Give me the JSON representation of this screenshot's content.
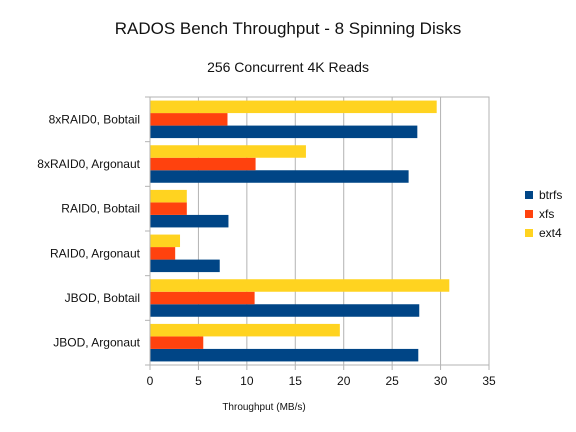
{
  "chart_data": {
    "type": "bar",
    "orientation": "horizontal",
    "title": "RADOS Bench Throughput - 8 Spinning Disks",
    "subtitle": "256 Concurrent 4K Reads",
    "xlabel": "Throughput (MB/s)",
    "ylabel": "",
    "xlim": [
      0,
      35
    ],
    "x_ticks": [
      0,
      5,
      10,
      15,
      20,
      25,
      30,
      35
    ],
    "grid": true,
    "legend_position": "right",
    "categories": [
      "8xRAID0, Bobtail",
      "8xRAID0, Argonaut",
      "RAID0, Bobtail",
      "RAID0, Argonaut",
      "JBOD, Bobtail",
      "JBOD, Argonaut"
    ],
    "series": [
      {
        "name": "btrfs",
        "color": "#004586",
        "values": [
          27.6,
          26.7,
          8.1,
          7.2,
          27.8,
          27.7
        ]
      },
      {
        "name": "xfs",
        "color": "#ff420e",
        "values": [
          8.0,
          10.9,
          3.8,
          2.6,
          10.8,
          5.5
        ]
      },
      {
        "name": "ext4",
        "color": "#ffd320",
        "values": [
          29.6,
          16.1,
          3.8,
          3.1,
          30.9,
          19.6
        ]
      }
    ]
  }
}
